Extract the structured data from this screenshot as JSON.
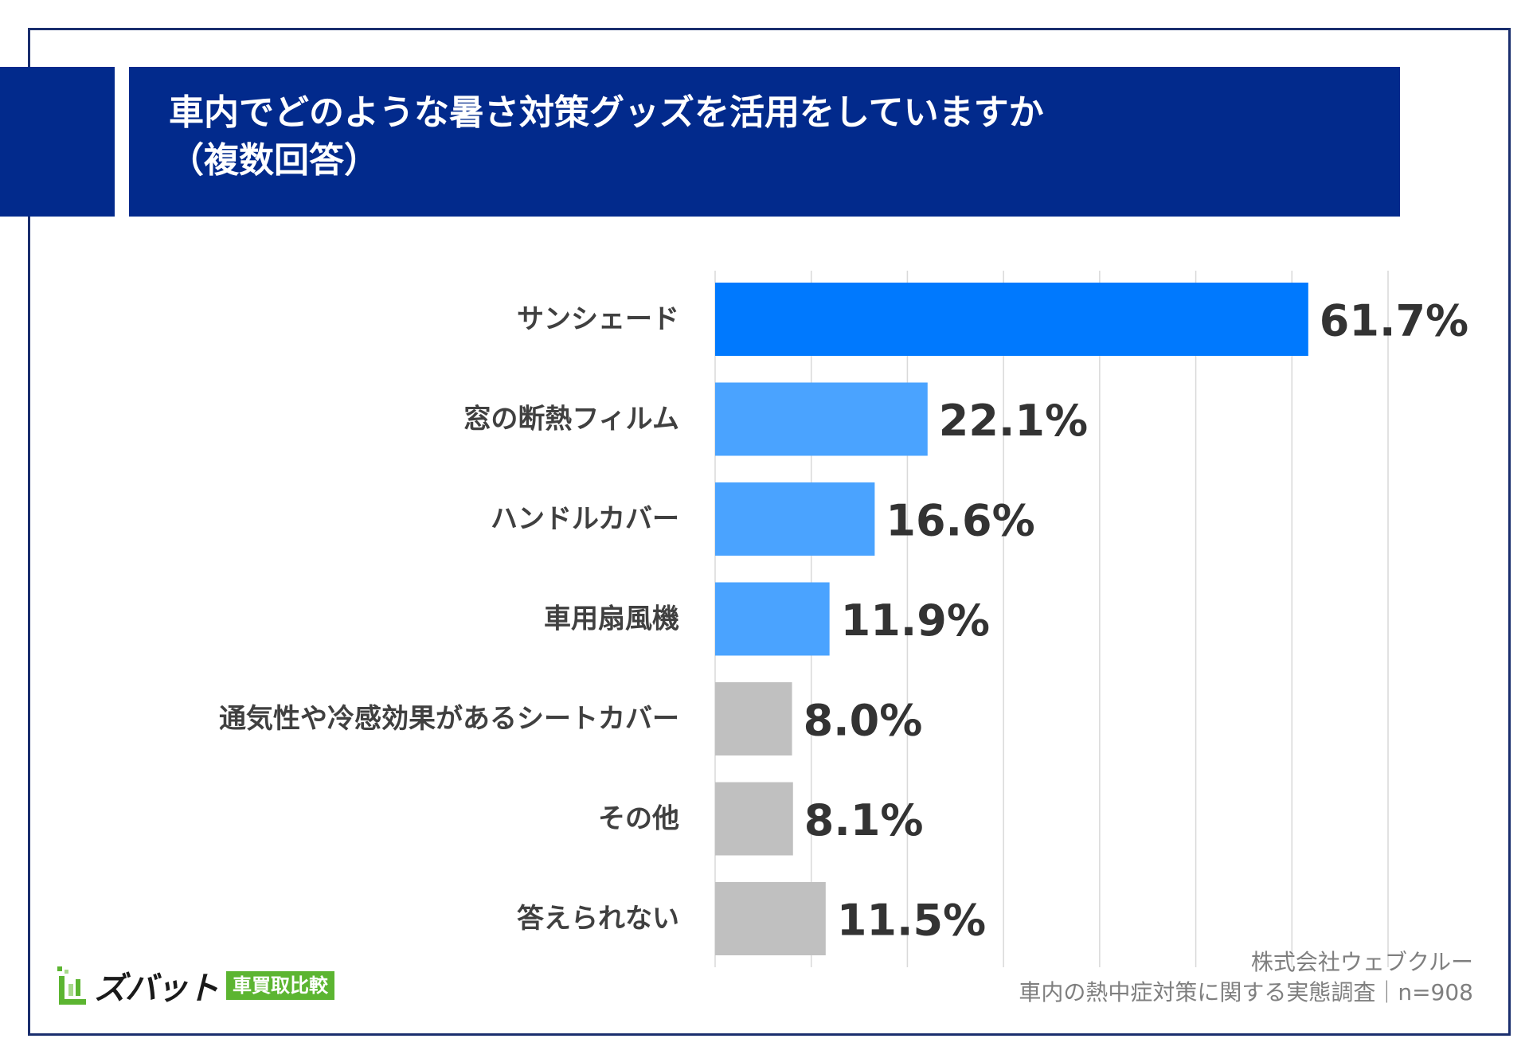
{
  "title_lines": [
    "車内でどのような暑さ対策グッズを活用をしていますか",
    "（複数回答）"
  ],
  "colors": {
    "header_bg": "#022a8c",
    "frame": "#1a2e6e",
    "highlight_bar": "#0079fe",
    "secondary_bar": "#4aa3ff",
    "neutral_bar": "#c0c0c0",
    "brand_green": "#5cb531"
  },
  "chart_data": {
    "type": "bar",
    "orientation": "horizontal",
    "categories": [
      "サンシェード",
      "窓の断熱フィルム",
      "ハンドルカバー",
      "車用扇風機",
      "通気性や冷感効果があるシートカバー",
      "その他",
      "答えられない"
    ],
    "values": [
      61.7,
      22.1,
      16.6,
      11.9,
      8.0,
      8.1,
      11.5
    ],
    "value_labels": [
      "61.7%",
      "22.1%",
      "16.6%",
      "11.9%",
      "8.0%",
      "8.1%",
      "11.5%"
    ],
    "bar_color_keys": [
      "highlight_bar",
      "secondary_bar",
      "secondary_bar",
      "secondary_bar",
      "neutral_bar",
      "neutral_bar",
      "neutral_bar"
    ],
    "xlim": [
      0,
      70
    ],
    "grid": true,
    "grid_step": 10,
    "unit": "%"
  },
  "brand": {
    "name": "ズバット",
    "tag": "車買取比較",
    "icon": "brand-chart-icon"
  },
  "credits": {
    "company": "株式会社ウェブクルー",
    "survey": "車内の熱中症対策に関する実態調査｜n=908"
  }
}
